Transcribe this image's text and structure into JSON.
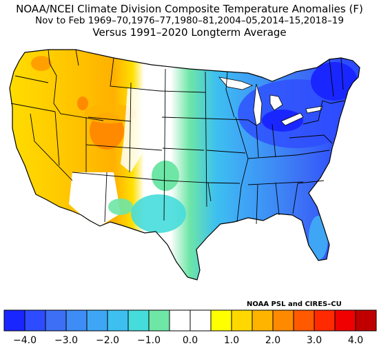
{
  "title": {
    "line1": "NOAA/NCEI Climate Division Composite Temperature Anomalies (F)",
    "line2": "Nov to Feb  1969–70,1976–77,1980–81,2004–05,2014–15,2018–19",
    "line3": "Versus 1991–2020 Longterm Average"
  },
  "credit": "NOAA PSL and CIRES–CU",
  "map": {
    "region": "Contiguous United States climate divisions",
    "pattern": {
      "west_coast_and_great_basin": "positive anomalies, +1 to +2.5 F (yellow to orange)",
      "northern_rockies_wyoming_colorado": "warmest, about +2 to +2.5 F (orange)",
      "high_plains_and_southwest": "near zero (white)",
      "central_plains_and_southern_rockies": "-0.5 to -1.5 F (green to light blue)",
      "midwest_and_south": "-2 to -3 F (blue)",
      "great_lakes_and_northeast": "coldest, about -3.5 to -4 F (dark blue)"
    }
  },
  "colorbar": {
    "bins": [
      {
        "low": -4.5,
        "high": -4.0,
        "color": "#1a26ff"
      },
      {
        "low": -4.0,
        "high": -3.5,
        "color": "#2e4cff"
      },
      {
        "low": -3.5,
        "high": -3.0,
        "color": "#3c6ff5"
      },
      {
        "low": -3.0,
        "high": -2.5,
        "color": "#3e8cf5"
      },
      {
        "low": -2.5,
        "high": -2.0,
        "color": "#3fa6f5"
      },
      {
        "low": -2.0,
        "high": -1.5,
        "color": "#3dc0f0"
      },
      {
        "low": -1.5,
        "high": -1.0,
        "color": "#46dcdc"
      },
      {
        "low": -1.0,
        "high": -0.5,
        "color": "#6ee6a6"
      },
      {
        "low": -0.5,
        "high": 0.0,
        "color": "#ffffff"
      },
      {
        "low": 0.0,
        "high": 0.5,
        "color": "#ffffff"
      },
      {
        "low": 0.5,
        "high": 1.0,
        "color": "#ffff00"
      },
      {
        "low": 1.0,
        "high": 1.5,
        "color": "#ffd800"
      },
      {
        "low": 1.5,
        "high": 2.0,
        "color": "#ffb400"
      },
      {
        "low": 2.0,
        "high": 2.5,
        "color": "#ff8a00"
      },
      {
        "low": 2.5,
        "high": 3.0,
        "color": "#ff5a00"
      },
      {
        "low": 3.0,
        "high": 3.5,
        "color": "#ff2a00"
      },
      {
        "low": 3.5,
        "high": 4.0,
        "color": "#f00000"
      },
      {
        "low": 4.0,
        "high": 4.5,
        "color": "#c00000"
      }
    ],
    "tick_labels": [
      "−4.0",
      "−3.0",
      "−2.0",
      "−1.0",
      "0.0",
      "1.0",
      "2.0",
      "3.0",
      "4.0"
    ]
  }
}
